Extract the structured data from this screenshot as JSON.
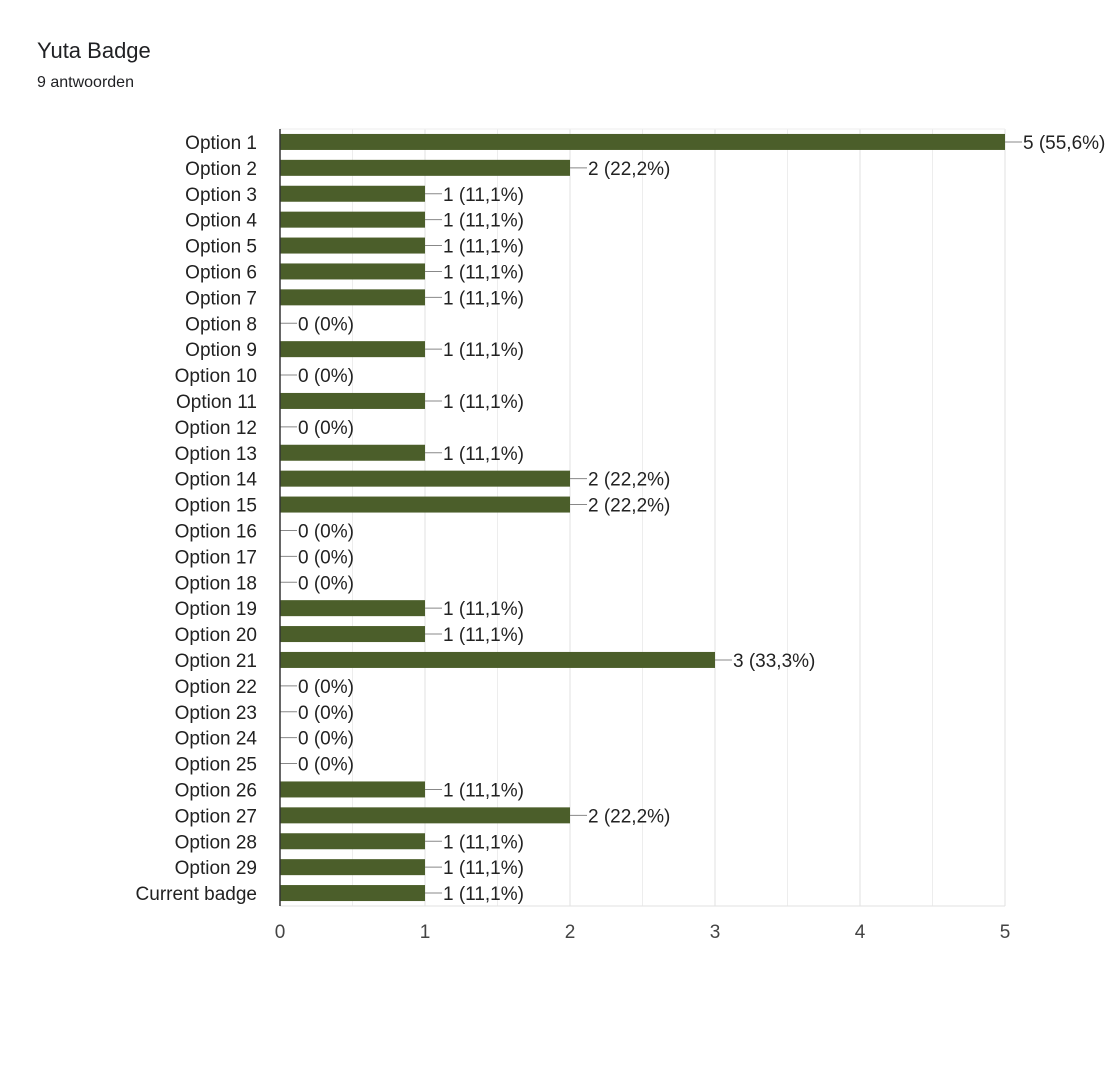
{
  "form": {
    "question_title": "Yuta Badge",
    "response_count": "9 antwoorden"
  },
  "chart_data": {
    "type": "bar",
    "orientation": "horizontal",
    "categories": [
      "Option 1",
      "Option 2",
      "Option 3",
      "Option 4",
      "Option 5",
      "Option 6",
      "Option 7",
      "Option 8",
      "Option 9",
      "Option 10",
      "Option 11",
      "Option 12",
      "Option 13",
      "Option 14",
      "Option 15",
      "Option 16",
      "Option 17",
      "Option 18",
      "Option 19",
      "Option 20",
      "Option 21",
      "Option 22",
      "Option 23",
      "Option 24",
      "Option 25",
      "Option 26",
      "Option 27",
      "Option 28",
      "Option 29",
      "Current badge"
    ],
    "values": [
      5,
      2,
      1,
      1,
      1,
      1,
      1,
      0,
      1,
      0,
      1,
      0,
      1,
      2,
      2,
      0,
      0,
      0,
      1,
      1,
      3,
      0,
      0,
      0,
      0,
      1,
      2,
      1,
      1,
      1
    ],
    "data_labels": [
      "5 (55,6%)",
      "2 (22,2%)",
      "1 (11,1%)",
      "1 (11,1%)",
      "1 (11,1%)",
      "1 (11,1%)",
      "1 (11,1%)",
      "0 (0%)",
      "1 (11,1%)",
      "0 (0%)",
      "1 (11,1%)",
      "0 (0%)",
      "1 (11,1%)",
      "2 (22,2%)",
      "2 (22,2%)",
      "0 (0%)",
      "0 (0%)",
      "0 (0%)",
      "1 (11,1%)",
      "1 (11,1%)",
      "3 (33,3%)",
      "0 (0%)",
      "0 (0%)",
      "0 (0%)",
      "0 (0%)",
      "1 (11,1%)",
      "2 (22,2%)",
      "1 (11,1%)",
      "1 (11,1%)",
      "1 (11,1%)"
    ],
    "x_ticks": [
      "0",
      "1",
      "2",
      "3",
      "4",
      "5"
    ],
    "xlim": [
      0,
      5
    ],
    "grid": true,
    "bar_color": "#4b5e2a",
    "title": "",
    "xlabel": "",
    "ylabel": ""
  }
}
